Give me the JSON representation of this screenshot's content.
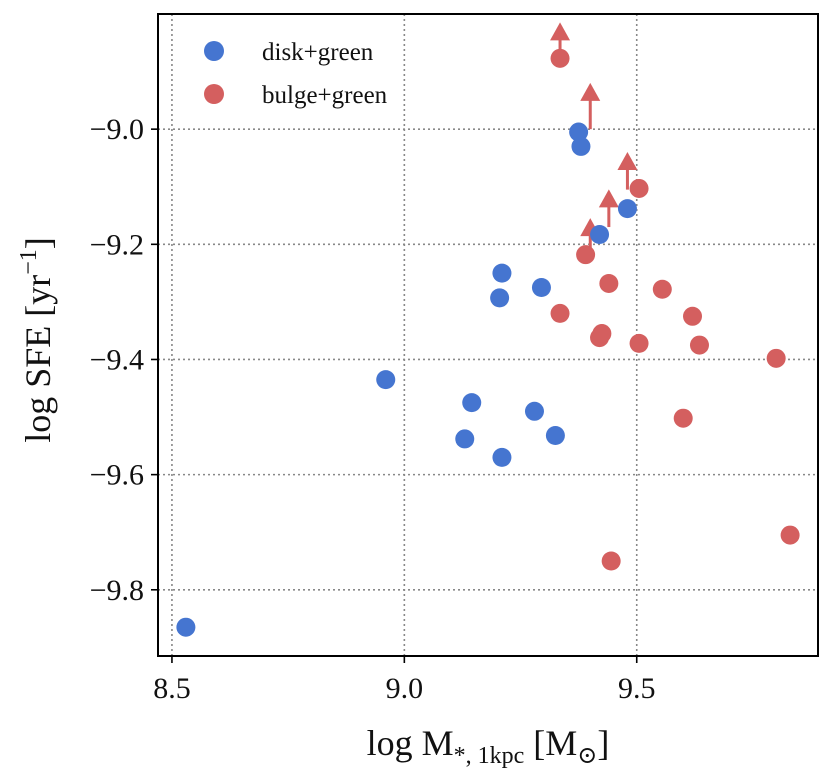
{
  "chart_data": {
    "type": "scatter",
    "title": "",
    "xlabel": "log M",
    "xlabel_sub": "*, 1kpc",
    "xlabel_unit_open": " [M",
    "xlabel_unit_sub": "⊙",
    "xlabel_unit_close": "]",
    "ylabel": "log SFE [yr",
    "ylabel_sup": "−1",
    "ylabel_close": "]",
    "xlim": [
      8.47,
      9.89
    ],
    "ylim": [
      -9.915,
      -8.8
    ],
    "xticks": [
      8.5,
      9.0,
      9.5
    ],
    "xtick_labels": [
      "8.5",
      "9.0",
      "9.5"
    ],
    "yticks": [
      -9.0,
      -9.2,
      -9.4,
      -9.6,
      -9.8
    ],
    "ytick_labels": [
      "−9.0",
      "−9.2",
      "−9.4",
      "−9.6",
      "−9.8"
    ],
    "grid": true,
    "legend_position": "upper-left",
    "series": [
      {
        "name": "disk+green",
        "color": "#4575d0",
        "points": [
          {
            "x": 8.53,
            "y": -9.865
          },
          {
            "x": 8.96,
            "y": -9.435
          },
          {
            "x": 9.145,
            "y": -9.475
          },
          {
            "x": 9.13,
            "y": -9.538
          },
          {
            "x": 9.21,
            "y": -9.57
          },
          {
            "x": 9.28,
            "y": -9.49
          },
          {
            "x": 9.325,
            "y": -9.532
          },
          {
            "x": 9.21,
            "y": -9.25
          },
          {
            "x": 9.205,
            "y": -9.293
          },
          {
            "x": 9.295,
            "y": -9.275
          },
          {
            "x": 9.375,
            "y": -9.005
          },
          {
            "x": 9.38,
            "y": -9.03
          },
          {
            "x": 9.42,
            "y": -9.183
          },
          {
            "x": 9.48,
            "y": -9.138
          }
        ]
      },
      {
        "name": "bulge+green",
        "color": "#d45f5f",
        "points": [
          {
            "x": 9.335,
            "y": -8.877,
            "lower_limit": true
          },
          {
            "x": 9.39,
            "y": -9.218,
            "lower_limit": true
          },
          {
            "x": 9.505,
            "y": -9.103,
            "lower_limit": true
          },
          {
            "x": 9.335,
            "y": -9.32
          },
          {
            "x": 9.42,
            "y": -9.362
          },
          {
            "x": 9.425,
            "y": -9.355
          },
          {
            "x": 9.44,
            "y": -9.268
          },
          {
            "x": 9.505,
            "y": -9.372
          },
          {
            "x": 9.555,
            "y": -9.278
          },
          {
            "x": 9.62,
            "y": -9.325
          },
          {
            "x": 9.635,
            "y": -9.375
          },
          {
            "x": 9.6,
            "y": -9.502
          },
          {
            "x": 9.8,
            "y": -9.398
          },
          {
            "x": 9.445,
            "y": -9.75
          },
          {
            "x": 9.83,
            "y": -9.705
          }
        ]
      }
    ],
    "arrows": [
      {
        "series": "bulge+green",
        "x": 9.335,
        "y_from": -8.877,
        "y_to": -8.825
      },
      {
        "series": "bulge+green",
        "x": 9.4,
        "y_from": -9.0,
        "y_to": -8.93
      },
      {
        "series": "bulge+green",
        "x": 9.48,
        "y_from": -9.105,
        "y_to": -9.05
      },
      {
        "series": "bulge+green",
        "x": 9.44,
        "y_from": -9.17,
        "y_to": -9.115
      },
      {
        "series": "bulge+green",
        "x": 9.4,
        "y_from": -9.22,
        "y_to": -9.165
      }
    ]
  }
}
